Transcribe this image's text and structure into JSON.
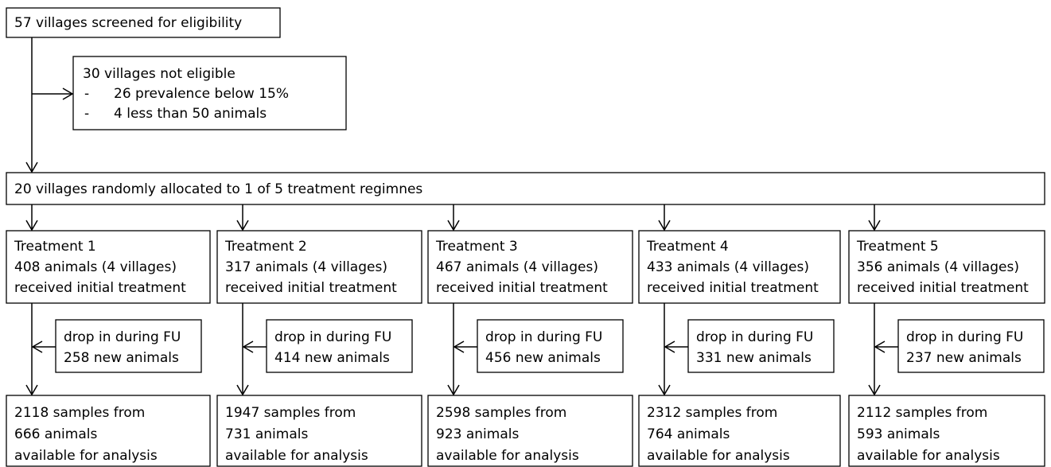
{
  "screened": "57 villages screened for eligibility",
  "not_eligible": {
    "title": "30 villages not eligible",
    "items": [
      {
        "bullet": "-",
        "text": "26 prevalence below 15%"
      },
      {
        "bullet": "-",
        "text": "4 less than 50 animals"
      }
    ]
  },
  "allocation": "20 villages randomly allocated to 1 of 5 treatment regimnes",
  "arms": [
    {
      "treatment": [
        "Treatment 1",
        "408 animals (4 villages)",
        "received initial treatment"
      ],
      "drop_in": [
        "drop in during FU",
        "258 new animals"
      ],
      "samples": [
        "2118 samples from",
        "666 animals",
        "available for analysis"
      ]
    },
    {
      "treatment": [
        "Treatment 2",
        "317 animals (4 villages)",
        "received initial treatment"
      ],
      "drop_in": [
        "drop in during FU",
        "414 new animals"
      ],
      "samples": [
        "1947 samples from",
        "731 animals",
        "available for analysis"
      ]
    },
    {
      "treatment": [
        "Treatment 3",
        "467 animals (4 villages)",
        "received initial treatment"
      ],
      "drop_in": [
        "drop in during FU",
        "456 new animals"
      ],
      "samples": [
        "2598 samples from",
        "923 animals",
        "available for analysis"
      ]
    },
    {
      "treatment": [
        "Treatment 4",
        "433 animals (4 villages)",
        "received initial treatment"
      ],
      "drop_in": [
        "drop in during FU",
        "331 new animals"
      ],
      "samples": [
        "2312 samples from",
        "764 animals",
        "available for analysis"
      ]
    },
    {
      "treatment": [
        "Treatment 5",
        "356 animals (4 villages)",
        "received initial treatment"
      ],
      "drop_in": [
        "drop in during FU",
        "237 new animals"
      ],
      "samples": [
        "2112 samples from",
        "593 animals",
        "available for analysis"
      ]
    }
  ]
}
